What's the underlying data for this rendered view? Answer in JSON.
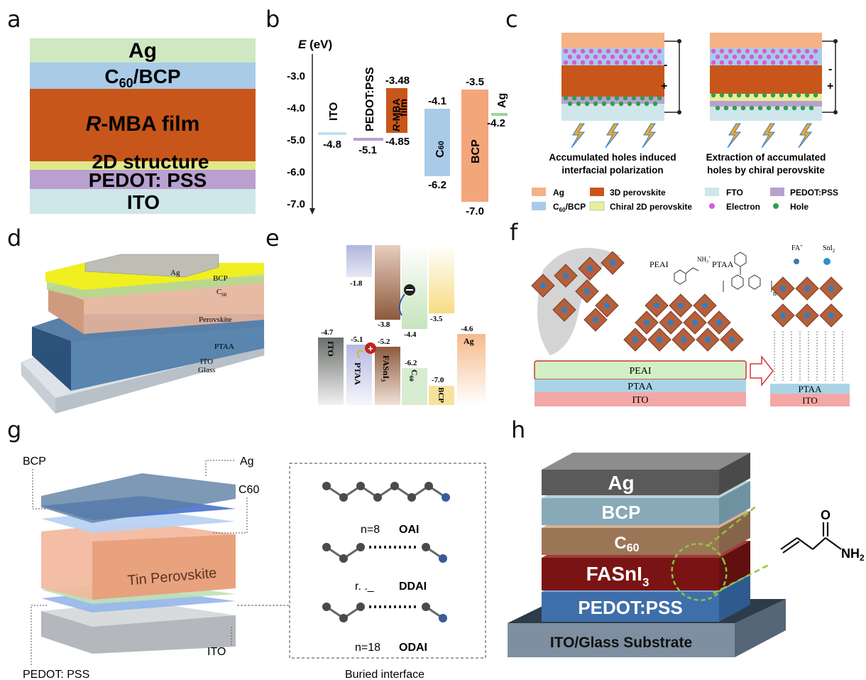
{
  "panel_labels": [
    "a",
    "b",
    "c",
    "d",
    "e",
    "f",
    "g",
    "h"
  ],
  "panel_a": {
    "layers": [
      "Ag",
      "C60/BCP",
      "R-MBA film",
      "2D structure",
      "PEDOT: PSS",
      "ITO"
    ],
    "c60_main": "C",
    "c60_sub": "60",
    "c60_rest": "/BCP",
    "rmba_italic": "R",
    "rmba_rest": "-MBA film"
  },
  "panel_b": {
    "axis_title_e": "E",
    "axis_title_unit": " (eV)",
    "ticks": [
      "-3.0",
      "-4.0",
      "-5.0",
      "-6.0",
      "-7.0"
    ],
    "levels": {
      "ito": {
        "name": "ITO",
        "value": "-4.8"
      },
      "pedot": {
        "name": "PEDOT:PSS",
        "value": "-5.1"
      },
      "rmba": {
        "name_italic": "R",
        "name_rest": "-MBA",
        "name_line2": "film",
        "top": "-3.48",
        "bottom": "-4.85"
      },
      "c60": {
        "name_main": "C",
        "name_sub": "60",
        "top": "-4.1",
        "bottom": "-6.2"
      },
      "bcp": {
        "name": "BCP",
        "top": "-3.5",
        "bottom": "-7.0"
      },
      "ag": {
        "name": "Ag",
        "value": "-4.2"
      }
    }
  },
  "panel_c": {
    "caption_left_1": "Accumulated holes induced",
    "caption_left_2": "interfacial polarization",
    "caption_right_1": "Extraction of accumulated",
    "caption_right_2": "holes by chiral perovskite",
    "sign_minus": "-",
    "sign_plus": "+",
    "legend": {
      "ag": "Ag",
      "perovskite_3d": "3D perovskite",
      "fto": "FTO",
      "pedot": "PEDOT:PSS",
      "c60_main": "C",
      "c60_sub": "60",
      "c60_rest": "/BCP",
      "chiral_2d": "Chiral 2D perovskite",
      "electron": "Electron",
      "hole": "Hole"
    }
  },
  "panel_d": {
    "layers": [
      "Ag",
      "BCP",
      "C60",
      "Perovskite",
      "PTAA",
      "ITO",
      "Glass"
    ],
    "c60_main": "C",
    "c60_sub": "60"
  },
  "panel_e": {
    "values": [
      "-1.8",
      "-3.8",
      "-4.4",
      "-3.5",
      "-4.7",
      "-5.1",
      "-5.2",
      "-6.2",
      "-7.0",
      "-4.6"
    ],
    "labels": {
      "ito": "ITO",
      "ptaa": "PTAA",
      "fasni": "FASnI",
      "fasni_sub": "3",
      "c60_main": "C",
      "c60_sub": "60",
      "bcp": "BCP",
      "ag": "Ag"
    }
  },
  "panel_f": {
    "peai_label": "PEAI",
    "nh3_label": "NH",
    "nh3_sub": "3",
    "nh3_sup": "+",
    "ptaa_label": "PTAA",
    "n_label": "n",
    "fa_label": "FA",
    "fa_sup": "+",
    "sni_label": "SnI",
    "sni_sub": "2",
    "layers_left": [
      "PEAI",
      "PTAA",
      "ITO"
    ],
    "layers_right": [
      "PTAA",
      "ITO"
    ]
  },
  "panel_g": {
    "callouts": [
      "BCP",
      "Ag",
      "C60",
      "ITO",
      "PEDOT: PSS"
    ],
    "main_label": "Tin Perovskite",
    "molecules": [
      {
        "n": "n=8",
        "name": "OAI"
      },
      {
        "n": "r.    ._",
        "name": "DDAI"
      },
      {
        "n": "n=18",
        "name": "ODAI"
      }
    ],
    "inset_caption": "Buried interface"
  },
  "panel_h": {
    "layers": [
      "Ag",
      "BCP",
      "C",
      "FASnI",
      "PEDOT:PSS",
      "ITO/Glass Substrate"
    ],
    "c60_sub": "60",
    "fasni_sub": "3",
    "molecule_o": "O",
    "molecule_nh": "NH",
    "molecule_nh_sub": "2"
  },
  "colors": {
    "ag_green": "#cfe8c2",
    "c60_blue": "#a9cbe8",
    "rmba_orange": "#c8561a",
    "twoD_yellow": "#dfe88a",
    "pedot_purple": "#b9a0cf",
    "ito_light": "#cfe6ea"
  }
}
